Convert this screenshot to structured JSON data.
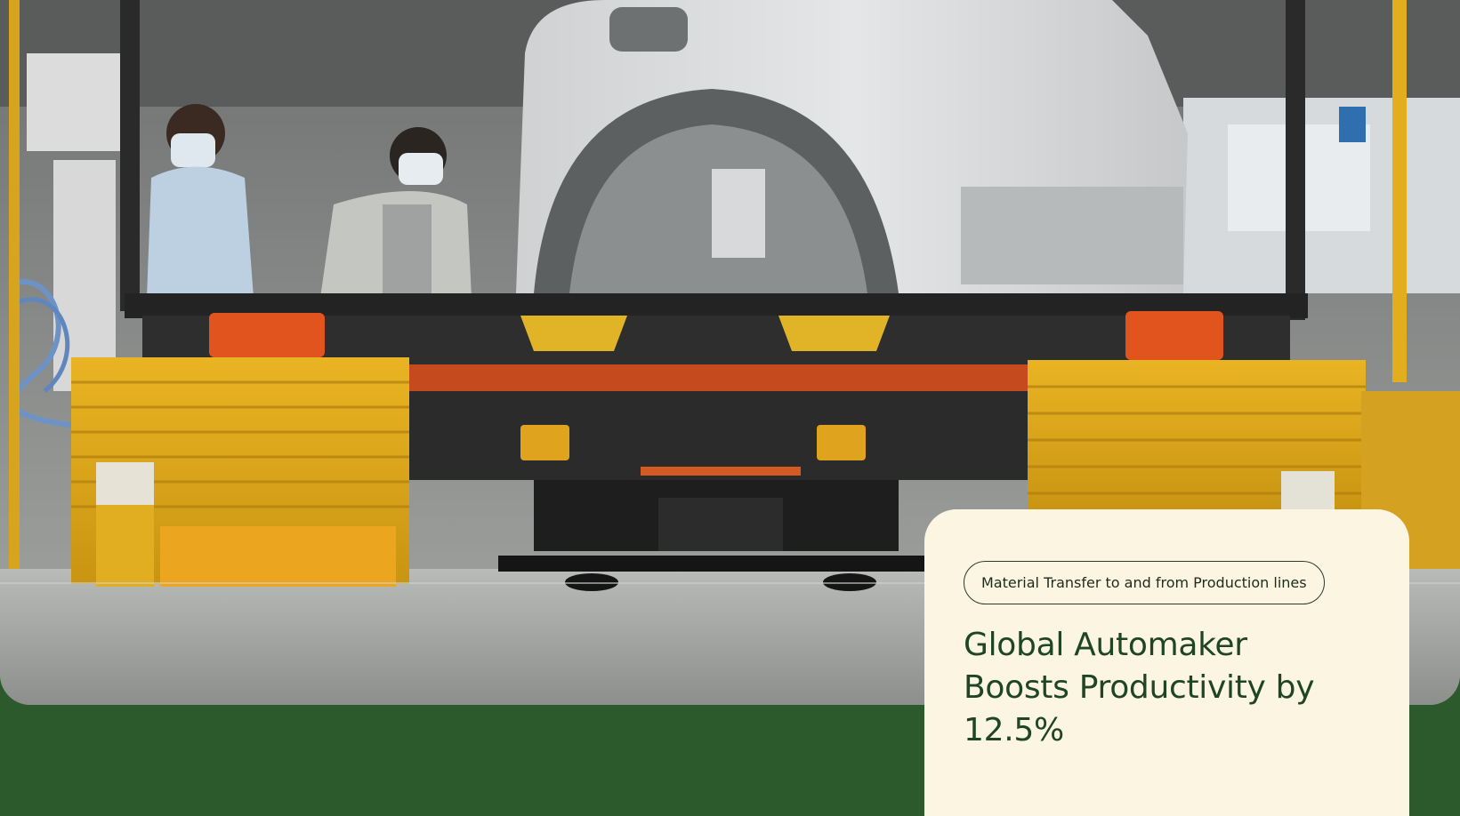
{
  "hero": {
    "image_description_icon": "factory-photo",
    "colors": {
      "background": "#2d5a2c",
      "card_background": "#fbf5e2",
      "headline_color": "#1f4620",
      "pill_border": "#2f3a2c"
    }
  },
  "case_study": {
    "category_label": "Material Transfer to and from Production lines",
    "headline_line1": "Global Automaker",
    "headline_line2": "Boosts Productivity by",
    "headline_line3": "12.5%"
  }
}
